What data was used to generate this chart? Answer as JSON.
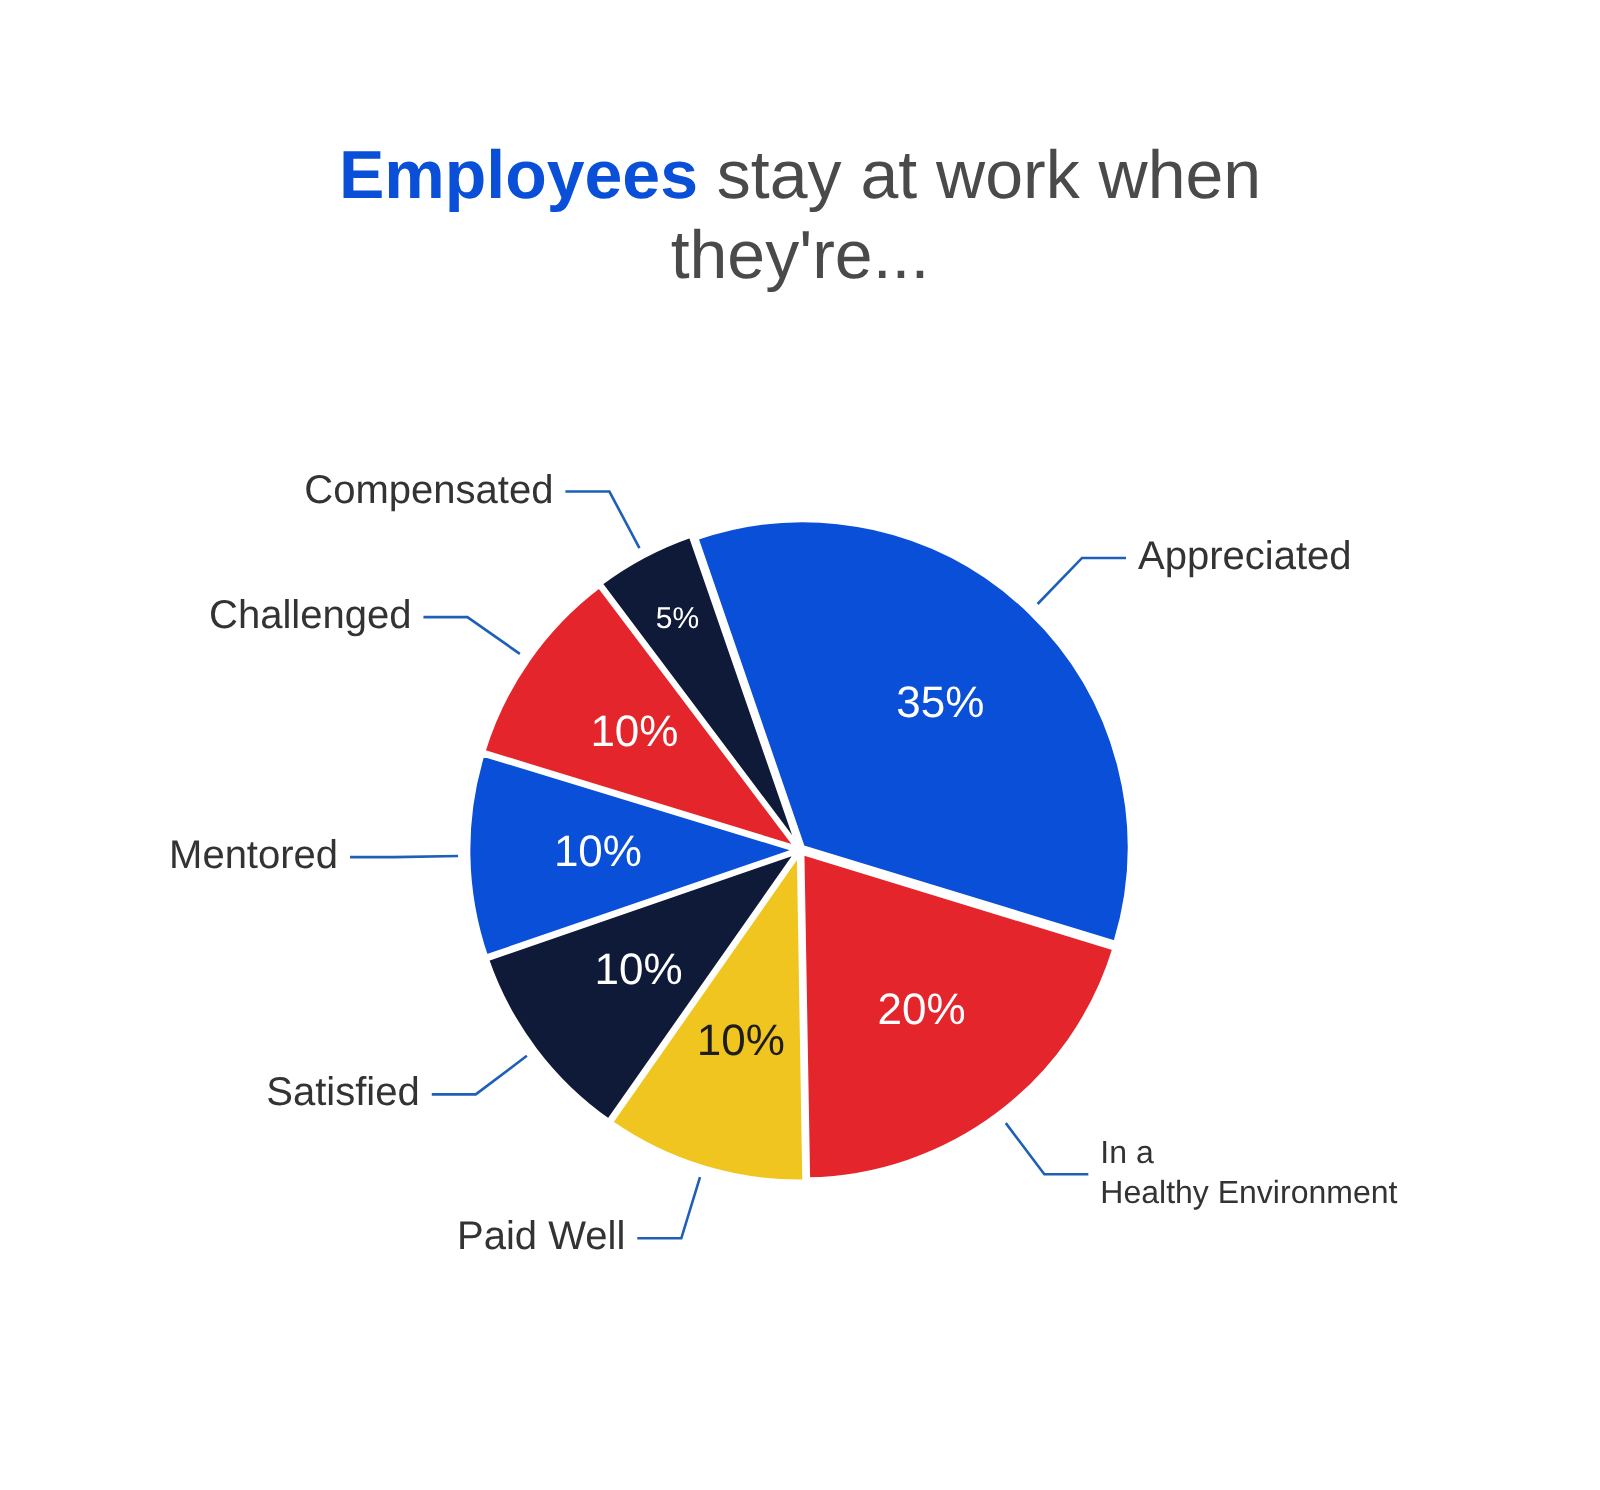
{
  "chart_data": {
    "type": "pie",
    "title": "Employees stay at work when they're...",
    "categories": [
      "Appreciated",
      "In a Healthy Environment",
      "Paid Well",
      "Satisfied",
      "Mentored",
      "Challenged",
      "Compensated"
    ],
    "values": [
      35,
      20,
      10,
      10,
      10,
      10,
      5
    ],
    "value_labels": [
      "35%",
      "20%",
      "10%",
      "10%",
      "10%",
      "10%",
      "5%"
    ],
    "colors": [
      "#0a4fd8",
      "#e4252b",
      "#f1c520",
      "#0e1a38",
      "#0a4fd8",
      "#e4252b",
      "#0e1a38"
    ],
    "legend": false
  }
}
